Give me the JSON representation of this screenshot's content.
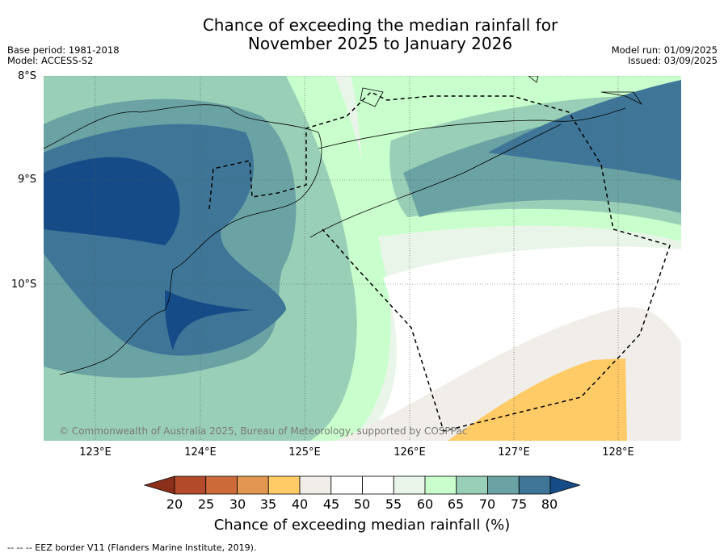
{
  "title_line1": "Chance of exceeding the median rainfall for",
  "title_line2": "November 2025 to January 2026",
  "meta_left": [
    "Base period: 1981-2018",
    "Model: ACCESS-S2"
  ],
  "meta_right": [
    "Model run: 01/09/2025",
    "Issued: 03/09/2025"
  ],
  "lat_labels": [
    "8°S",
    "9°S",
    "10°S"
  ],
  "lon_labels": [
    "123°E",
    "124°E",
    "125°E",
    "126°E",
    "127°E",
    "128°E"
  ],
  "credit": "© Commonwealth of Australia 2025, Bureau of Meteorology, supported by COSPPac",
  "colorbar": {
    "ticks": [
      "20",
      "25",
      "30",
      "35",
      "40",
      "45",
      "50",
      "55",
      "60",
      "65",
      "70",
      "75",
      "80"
    ],
    "colors": [
      "#8b2f1a",
      "#b34a2a",
      "#cd6a39",
      "#e2964f",
      "#ffcb66",
      "#f1ede8",
      "#ffffff",
      "#ffffff",
      "#eaf5ea",
      "#c9ffcc",
      "#99cfb6",
      "#6ba3a4",
      "#3f7697",
      "#154c87"
    ],
    "label": "Chance of exceeding median rainfall (%)"
  },
  "footnote": "--  --  -- EEZ border V11 (Flanders Marine Institute, 2019)."
}
